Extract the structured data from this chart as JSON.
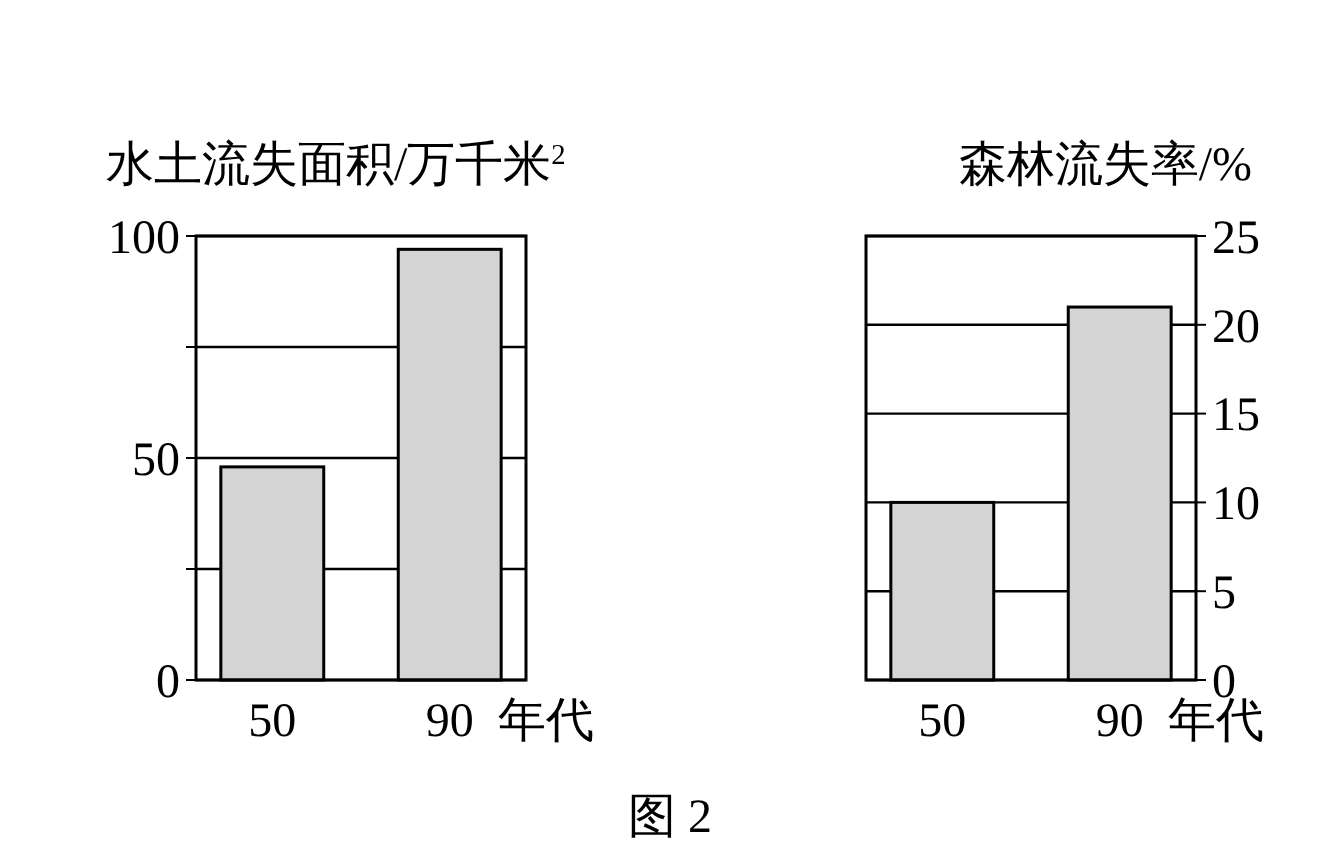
{
  "chart_data": [
    {
      "type": "bar",
      "ylabel": "水土流失面积/万千米$^{2}$",
      "xlabel": "年代",
      "categories": [
        "50",
        "90"
      ],
      "series": [
        {
          "color": "#d4d4d4",
          "values": [
            48,
            97
          ]
        }
      ],
      "ylim": [
        0,
        100
      ],
      "yticks": [
        0,
        {
          "value": 25,
          "label": null
        },
        50,
        {
          "value": 75,
          "label": null
        },
        100
      ],
      "grid": "y",
      "annotations": [
        "图 2"
      ]
    },
    {
      "type": "bar",
      "y2label": "森林流失率/%",
      "xlabel": "年代",
      "categories": [
        "50",
        "90"
      ],
      "series": [
        {
          "color": "#d4d4d4",
          "values": [
            10,
            21
          ],
          "axis": "y2"
        }
      ],
      "y2lim": [
        0,
        25
      ],
      "y2ticks": [
        0,
        5,
        10,
        15,
        20,
        25
      ],
      "grid": "y"
    }
  ]
}
